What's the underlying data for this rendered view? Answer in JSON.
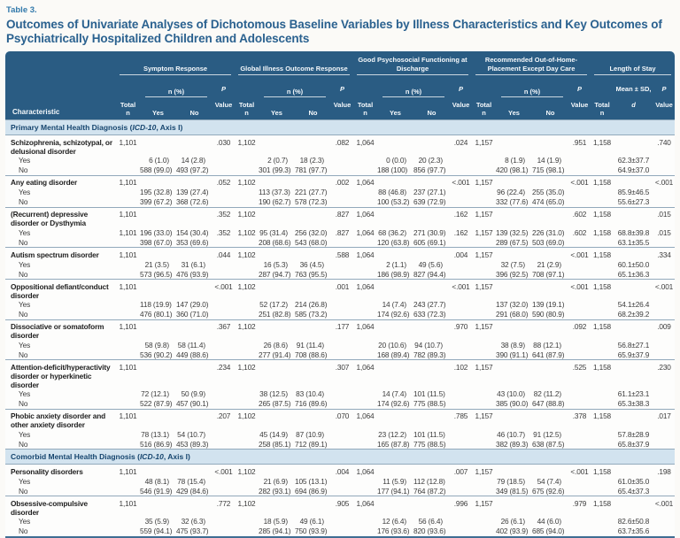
{
  "page": {
    "table_label": "Table 3.",
    "title": "Outcomes of Univariate Analyses of Dichotomous Baseline Variables by Illness Characteristics and Key Outcomes of Psychiatrically Hospitalized Children and Adolescents"
  },
  "colors": {
    "header_bg": "#2a5c83",
    "section_bg": "#d2e3ef",
    "title_blue": "#2a618f",
    "accent_label_blue": "#3279ab",
    "divider": "#92a9bb",
    "table_bottom_border": "#3f6e93"
  },
  "table": {
    "header": {
      "characteristic": "Characteristic",
      "total_label": "Total\nn",
      "npct_label": "n (%)",
      "yes_label": "Yes",
      "no_label": "No",
      "p_label": "P",
      "value_label": "Value",
      "mean_label_line1": "Mean ± SD,",
      "mean_label_line2": "d",
      "groups": [
        {
          "label": "Symptom Response"
        },
        {
          "label": "Global Illness Outcome Response"
        },
        {
          "label": "Good Psychosocial Functioning at Discharge"
        },
        {
          "label": "Recommended Out-of-Home-Placement Except Day Care"
        },
        {
          "label": "Length of Stay"
        }
      ]
    },
    "sections": [
      {
        "label_prefix": "Primary Mental Health Diagnosis (",
        "label_italic": "ICD-10",
        "label_suffix": ", Axis I)",
        "rows": [
          {
            "name": "Schizophrenia, schizotypal, or delusional disorder",
            "type": "main",
            "cells": [
              "1,101",
              "",
              "",
              ".030",
              "1,102",
              "",
              "",
              ".082",
              "1,064",
              "",
              "",
              ".024",
              "1,157",
              "",
              "",
              ".951",
              "1,158",
              "",
              ".740"
            ]
          },
          {
            "name": "Yes",
            "type": "sub",
            "cells": [
              "",
              "6 (1.0)",
              "14 (2.8)",
              "",
              "",
              "2 (0.7)",
              "18 (2.3)",
              "",
              "",
              "0 (0.0)",
              "20 (2.3)",
              "",
              "",
              "8 (1.9)",
              "14 (1.9)",
              "",
              "",
              "62.3±37.7",
              ""
            ]
          },
          {
            "name": "No",
            "type": "sub",
            "cells": [
              "",
              "588 (99.0)",
              "493 (97.2)",
              "",
              "",
              "301 (99.3)",
              "781 (97.7)",
              "",
              "",
              "188 (100)",
              "856 (97.7)",
              "",
              "",
              "420 (98.1)",
              "715 (98.1)",
              "",
              "",
              "64.9±37.0",
              ""
            ]
          },
          {
            "name": "Any eating disorder",
            "type": "main",
            "cells": [
              "1,101",
              "",
              "",
              ".052",
              "1,102",
              "",
              "",
              ".002",
              "1,064",
              "",
              "",
              "<.001",
              "1,157",
              "",
              "",
              "<.001",
              "1,158",
              "",
              "<.001"
            ]
          },
          {
            "name": "Yes",
            "type": "sub",
            "cells": [
              "",
              "195 (32.8)",
              "139 (27.4)",
              "",
              "",
              "113 (37.3)",
              "221 (27.7)",
              "",
              "",
              "88 (46.8)",
              "237 (27.1)",
              "",
              "",
              "96 (22.4)",
              "255 (35.0)",
              "",
              "",
              "85.9±46.5",
              ""
            ]
          },
          {
            "name": "No",
            "type": "sub",
            "cells": [
              "",
              "399 (67.2)",
              "368 (72.6)",
              "",
              "",
              "190 (62.7)",
              "578 (72.3)",
              "",
              "",
              "100 (53.2)",
              "639 (72.9)",
              "",
              "",
              "332 (77.6)",
              "474 (65.0)",
              "",
              "",
              "55.6±27.3",
              ""
            ]
          },
          {
            "name": "(Recurrent) depressive disorder or Dysthymia",
            "type": "main",
            "cells": [
              "1,101",
              "",
              "",
              ".352",
              "1,102",
              "",
              "",
              ".827",
              "1,064",
              "",
              "",
              ".162",
              "1,157",
              "",
              "",
              ".602",
              "1,158",
              "",
              ".015"
            ]
          },
          {
            "name": "Yes",
            "type": "sub",
            "cells": [
              "1,101",
              "196 (33.0)",
              "154 (30.4)",
              ".352",
              "1,102",
              "95 (31.4)",
              "256 (32.0)",
              ".827",
              "1,064",
              "68 (36.2)",
              "271 (30.9)",
              ".162",
              "1,157",
              "139 (32.5)",
              "226 (31.0)",
              ".602",
              "1,158",
              "68.8±39.8",
              ".015"
            ]
          },
          {
            "name": "No",
            "type": "sub",
            "cells": [
              "",
              "398 (67.0)",
              "353 (69.6)",
              "",
              "",
              "208 (68.6)",
              "543 (68.0)",
              "",
              "",
              "120 (63.8)",
              "605 (69.1)",
              "",
              "",
              "289 (67.5)",
              "503 (69.0)",
              "",
              "",
              "63.1±35.5",
              ""
            ]
          },
          {
            "name": "Autism spectrum disorder",
            "type": "main",
            "cells": [
              "1,101",
              "",
              "",
              ".044",
              "1,102",
              "",
              "",
              ".588",
              "1,064",
              "",
              "",
              ".004",
              "1,157",
              "",
              "",
              "<.001",
              "1,158",
              "",
              ".334"
            ]
          },
          {
            "name": "Yes",
            "type": "sub",
            "cells": [
              "",
              "21 (3.5)",
              "31 (6.1)",
              "",
              "",
              "16 (5.3)",
              "36 (4.5)",
              "",
              "",
              "2 (1.1)",
              "49 (5.6)",
              "",
              "",
              "32 (7.5)",
              "21 (2.9)",
              "",
              "",
              "60.1±50.0",
              ""
            ]
          },
          {
            "name": "No",
            "type": "sub",
            "cells": [
              "",
              "573 (96.5)",
              "476 (93.9)",
              "",
              "",
              "287 (94.7)",
              "763 (95.5)",
              "",
              "",
              "186 (98.9)",
              "827 (94.4)",
              "",
              "",
              "396 (92.5)",
              "708 (97.1)",
              "",
              "",
              "65.1±36.3",
              ""
            ]
          },
          {
            "name": "Oppositional defiant/conduct disorder",
            "type": "main",
            "cells": [
              "1,101",
              "",
              "",
              "<.001",
              "1,102",
              "",
              "",
              ".001",
              "1,064",
              "",
              "",
              "<.001",
              "1,157",
              "",
              "",
              "<.001",
              "1,158",
              "",
              "<.001"
            ]
          },
          {
            "name": "Yes",
            "type": "sub",
            "cells": [
              "",
              "118 (19.9)",
              "147 (29.0)",
              "",
              "",
              "52 (17.2)",
              "214 (26.8)",
              "",
              "",
              "14 (7.4)",
              "243 (27.7)",
              "",
              "",
              "137 (32.0)",
              "139 (19.1)",
              "",
              "",
              "54.1±26.4",
              ""
            ]
          },
          {
            "name": "No",
            "type": "sub",
            "cells": [
              "",
              "476 (80.1)",
              "360 (71.0)",
              "",
              "",
              "251 (82.8)",
              "585 (73.2)",
              "",
              "",
              "174 (92.6)",
              "633 (72.3)",
              "",
              "",
              "291 (68.0)",
              "590 (80.9)",
              "",
              "",
              "68.2±39.2",
              ""
            ]
          },
          {
            "name": "Dissociative or somatoform disorder",
            "type": "main",
            "cells": [
              "1,101",
              "",
              "",
              ".367",
              "1,102",
              "",
              "",
              ".177",
              "1,064",
              "",
              "",
              ".970",
              "1,157",
              "",
              "",
              ".092",
              "1,158",
              "",
              ".009"
            ]
          },
          {
            "name": "Yes",
            "type": "sub",
            "cells": [
              "",
              "58 (9.8)",
              "58 (11.4)",
              "",
              "",
              "26 (8.6)",
              "91 (11.4)",
              "",
              "",
              "20 (10.6)",
              "94 (10.7)",
              "",
              "",
              "38 (8.9)",
              "88 (12.1)",
              "",
              "",
              "56.8±27.1",
              ""
            ]
          },
          {
            "name": "No",
            "type": "sub",
            "cells": [
              "",
              "536 (90.2)",
              "449 (88.6)",
              "",
              "",
              "277 (91.4)",
              "708 (88.6)",
              "",
              "",
              "168 (89.4)",
              "782 (89.3)",
              "",
              "",
              "390 (91.1)",
              "641 (87.9)",
              "",
              "",
              "65.9±37.9",
              ""
            ]
          },
          {
            "name": "Attention-deficit/hyperactivity disorder or hyperkinetic disorder",
            "type": "main",
            "cells": [
              "1,101",
              "",
              "",
              ".234",
              "1,102",
              "",
              "",
              ".307",
              "1,064",
              "",
              "",
              ".102",
              "1,157",
              "",
              "",
              ".525",
              "1,158",
              "",
              ".230"
            ]
          },
          {
            "name": "Yes",
            "type": "sub",
            "cells": [
              "",
              "72 (12.1)",
              "50 (9.9)",
              "",
              "",
              "38 (12.5)",
              "83 (10.4)",
              "",
              "",
              "14 (7.4)",
              "101 (11.5)",
              "",
              "",
              "43 (10.0)",
              "82 (11.2)",
              "",
              "",
              "61.1±23.1",
              ""
            ]
          },
          {
            "name": "No",
            "type": "sub",
            "cells": [
              "",
              "522 (87.9)",
              "457 (90.1)",
              "",
              "",
              "265 (87.5)",
              "716 (89.6)",
              "",
              "",
              "174 (92.6)",
              "775 (88.5)",
              "",
              "",
              "385 (90.0)",
              "647 (88.8)",
              "",
              "",
              "65.3±38.3",
              ""
            ]
          },
          {
            "name": "Phobic anxiety disorder and other anxiety disorder",
            "type": "main",
            "cells": [
              "1,101",
              "",
              "",
              ".207",
              "1,102",
              "",
              "",
              ".070",
              "1,064",
              "",
              "",
              ".785",
              "1,157",
              "",
              "",
              ".378",
              "1,158",
              "",
              ".017"
            ]
          },
          {
            "name": "Yes",
            "type": "sub",
            "cells": [
              "",
              "78 (13.1)",
              "54 (10.7)",
              "",
              "",
              "45 (14.9)",
              "87 (10.9)",
              "",
              "",
              "23 (12.2)",
              "101 (11.5)",
              "",
              "",
              "46 (10.7)",
              "91 (12.5)",
              "",
              "",
              "57.8±28.9",
              ""
            ]
          },
          {
            "name": "No",
            "type": "sub",
            "cells": [
              "",
              "516 (86.9)",
              "453 (89.3)",
              "",
              "",
              "258 (85.1)",
              "712 (89.1)",
              "",
              "",
              "165 (87.8)",
              "775 (88.5)",
              "",
              "",
              "382 (89.3)",
              "638 (87.5)",
              "",
              "",
              "65.8±37.9",
              ""
            ]
          }
        ]
      },
      {
        "label_prefix": "Comorbid Mental Health Diagnosis (",
        "label_italic": "ICD-10",
        "label_suffix": ", Axis I)",
        "rows": [
          {
            "name": "Personality disorders",
            "type": "main",
            "cells": [
              "1,101",
              "",
              "",
              "<.001",
              "1,102",
              "",
              "",
              ".004",
              "1,064",
              "",
              "",
              ".007",
              "1,157",
              "",
              "",
              "<.001",
              "1,158",
              "",
              ".198"
            ]
          },
          {
            "name": "Yes",
            "type": "sub",
            "cells": [
              "",
              "48 (8.1)",
              "78 (15.4)",
              "",
              "",
              "21 (6.9)",
              "105 (13.1)",
              "",
              "",
              "11 (5.9)",
              "112 (12.8)",
              "",
              "",
              "79 (18.5)",
              "54 (7.4)",
              "",
              "",
              "61.0±35.0",
              ""
            ]
          },
          {
            "name": "No",
            "type": "sub",
            "cells": [
              "",
              "546 (91.9)",
              "429 (84.6)",
              "",
              "",
              "282 (93.1)",
              "694 (86.9)",
              "",
              "",
              "177 (94.1)",
              "764 (87.2)",
              "",
              "",
              "349 (81.5)",
              "675 (92.6)",
              "",
              "",
              "65.4±37.3",
              ""
            ]
          },
          {
            "name": "Obsessive-compulsive disorder",
            "type": "main",
            "cells": [
              "1,101",
              "",
              "",
              ".772",
              "1,102",
              "",
              "",
              ".905",
              "1,064",
              "",
              "",
              ".996",
              "1,157",
              "",
              "",
              ".979",
              "1,158",
              "",
              "<.001"
            ]
          },
          {
            "name": "Yes",
            "type": "sub",
            "cells": [
              "",
              "35 (5.9)",
              "32 (6.3)",
              "",
              "",
              "18 (5.9)",
              "49 (6.1)",
              "",
              "",
              "12 (6.4)",
              "56 (6.4)",
              "",
              "",
              "26 (6.1)",
              "44 (6.0)",
              "",
              "",
              "82.6±50.8",
              ""
            ]
          },
          {
            "name": "No",
            "type": "sub",
            "cells": [
              "",
              "559 (94.1)",
              "475 (93.7)",
              "",
              "",
              "285 (94.1)",
              "750 (93.9)",
              "",
              "",
              "176 (93.6)",
              "820 (93.6)",
              "",
              "",
              "402 (93.9)",
              "685 (94.0)",
              "",
              "",
              "63.7±35.6",
              ""
            ]
          }
        ]
      }
    ]
  }
}
